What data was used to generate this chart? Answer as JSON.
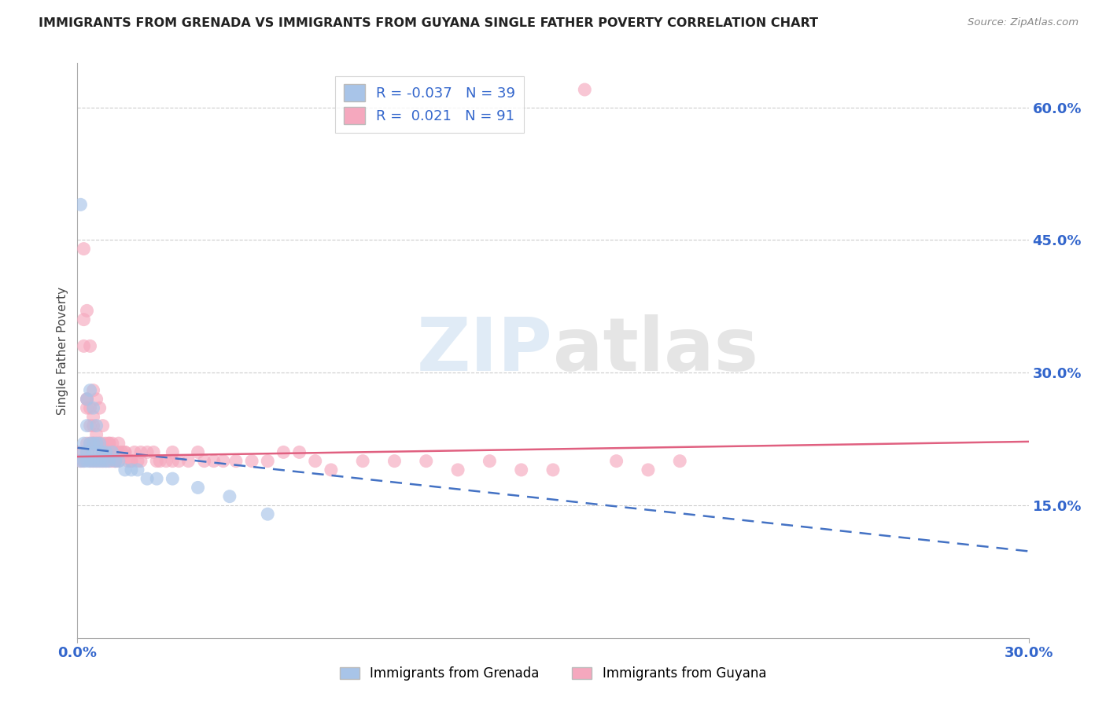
{
  "title": "IMMIGRANTS FROM GRENADA VS IMMIGRANTS FROM GUYANA SINGLE FATHER POVERTY CORRELATION CHART",
  "source": "Source: ZipAtlas.com",
  "ylabel": "Single Father Poverty",
  "legend_label1": "Immigrants from Grenada",
  "legend_label2": "Immigrants from Guyana",
  "R1": -0.037,
  "N1": 39,
  "R2": 0.021,
  "N2": 91,
  "color1": "#a8c4e8",
  "color2": "#f5a8be",
  "line_color1": "#4472c4",
  "line_color2": "#e06080",
  "xlim": [
    0.0,
    0.3
  ],
  "ylim": [
    0.0,
    0.65
  ],
  "right_yticks": [
    0.15,
    0.3,
    0.45,
    0.6
  ],
  "right_yticklabels": [
    "15.0%",
    "30.0%",
    "45.0%",
    "60.0%"
  ],
  "grenada_x": [
    0.001,
    0.001,
    0.002,
    0.002,
    0.002,
    0.003,
    0.003,
    0.003,
    0.003,
    0.004,
    0.004,
    0.004,
    0.005,
    0.005,
    0.005,
    0.005,
    0.006,
    0.006,
    0.006,
    0.007,
    0.007,
    0.007,
    0.008,
    0.008,
    0.009,
    0.009,
    0.01,
    0.011,
    0.012,
    0.013,
    0.015,
    0.017,
    0.019,
    0.022,
    0.025,
    0.03,
    0.038,
    0.048,
    0.06
  ],
  "grenada_y": [
    0.49,
    0.2,
    0.22,
    0.2,
    0.21,
    0.24,
    0.27,
    0.21,
    0.2,
    0.28,
    0.22,
    0.2,
    0.26,
    0.22,
    0.21,
    0.2,
    0.24,
    0.22,
    0.2,
    0.22,
    0.21,
    0.2,
    0.21,
    0.2,
    0.21,
    0.2,
    0.2,
    0.21,
    0.2,
    0.2,
    0.19,
    0.19,
    0.19,
    0.18,
    0.18,
    0.18,
    0.17,
    0.16,
    0.14
  ],
  "guyana_x": [
    0.001,
    0.001,
    0.002,
    0.002,
    0.002,
    0.003,
    0.003,
    0.003,
    0.003,
    0.004,
    0.004,
    0.004,
    0.004,
    0.005,
    0.005,
    0.005,
    0.005,
    0.006,
    0.006,
    0.006,
    0.007,
    0.007,
    0.007,
    0.008,
    0.008,
    0.008,
    0.009,
    0.009,
    0.01,
    0.01,
    0.011,
    0.011,
    0.012,
    0.012,
    0.013,
    0.013,
    0.014,
    0.015,
    0.016,
    0.017,
    0.018,
    0.019,
    0.02,
    0.022,
    0.024,
    0.026,
    0.028,
    0.03,
    0.032,
    0.035,
    0.038,
    0.04,
    0.043,
    0.046,
    0.05,
    0.055,
    0.06,
    0.065,
    0.07,
    0.075,
    0.08,
    0.09,
    0.1,
    0.11,
    0.12,
    0.13,
    0.14,
    0.15,
    0.16,
    0.17,
    0.18,
    0.19,
    0.002,
    0.003,
    0.003,
    0.004,
    0.005,
    0.005,
    0.006,
    0.007,
    0.008,
    0.009,
    0.01,
    0.011,
    0.012,
    0.013,
    0.015,
    0.017,
    0.02,
    0.025,
    0.03
  ],
  "guyana_y": [
    0.2,
    0.21,
    0.44,
    0.36,
    0.2,
    0.37,
    0.27,
    0.22,
    0.21,
    0.33,
    0.26,
    0.22,
    0.2,
    0.28,
    0.24,
    0.22,
    0.2,
    0.27,
    0.22,
    0.2,
    0.26,
    0.21,
    0.2,
    0.24,
    0.22,
    0.2,
    0.22,
    0.2,
    0.22,
    0.2,
    0.22,
    0.2,
    0.21,
    0.2,
    0.22,
    0.2,
    0.21,
    0.21,
    0.2,
    0.2,
    0.21,
    0.2,
    0.2,
    0.21,
    0.21,
    0.2,
    0.2,
    0.21,
    0.2,
    0.2,
    0.21,
    0.2,
    0.2,
    0.2,
    0.2,
    0.2,
    0.2,
    0.21,
    0.21,
    0.2,
    0.19,
    0.2,
    0.2,
    0.2,
    0.19,
    0.2,
    0.19,
    0.19,
    0.62,
    0.2,
    0.19,
    0.2,
    0.33,
    0.26,
    0.27,
    0.24,
    0.25,
    0.22,
    0.23,
    0.22,
    0.21,
    0.21,
    0.22,
    0.21,
    0.2,
    0.21,
    0.21,
    0.2,
    0.21,
    0.2,
    0.2
  ],
  "grenada_line_x": [
    0.0,
    0.3
  ],
  "grenada_line_y": [
    0.215,
    0.098
  ],
  "guyana_line_x": [
    0.0,
    0.3
  ],
  "guyana_line_y": [
    0.205,
    0.222
  ]
}
